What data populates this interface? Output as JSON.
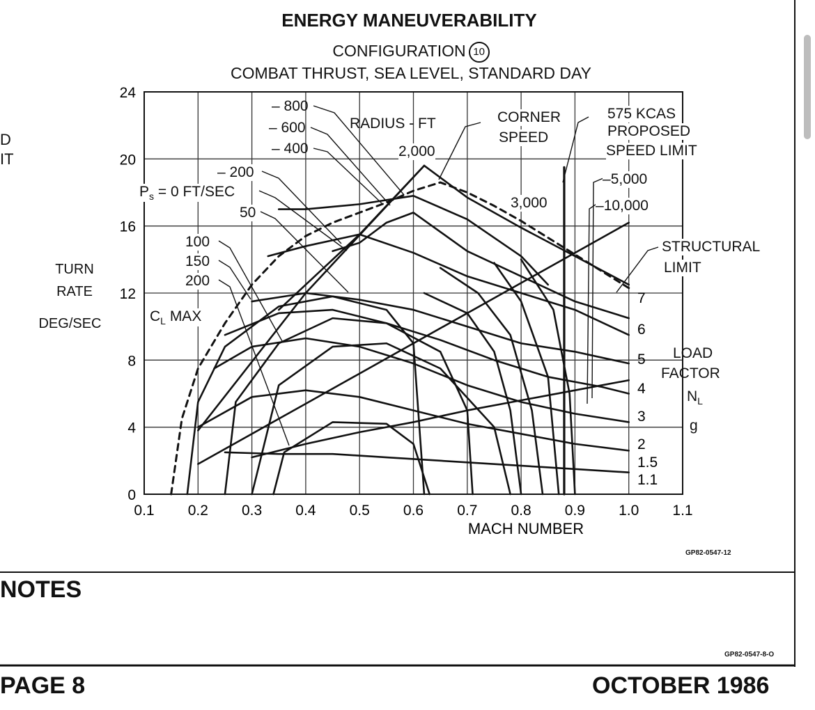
{
  "title": "ENERGY MANEUVERABILITY",
  "config_label": "CONFIGURATION",
  "config_number": "10",
  "conditions": "COMBAT THRUST, SEA LEVEL, STANDARD DAY",
  "left_edge_text": [
    "D",
    "IT"
  ],
  "notes_heading": "NOTES",
  "page_label": "PAGE 8",
  "date_label": "OCTOBER 1986",
  "figure_code": "GP82-0547-12",
  "page_code": "GP82-0547-8-O",
  "chart_data": {
    "type": "line",
    "xlabel": "MACH NUMBER",
    "ylabel": [
      "TURN",
      "RATE",
      "DEG/SEC"
    ],
    "xlim": [
      0.1,
      1.1
    ],
    "ylim": [
      0,
      24
    ],
    "grid": true,
    "x_ticks": [
      "0.1",
      "0.2",
      "0.3",
      "0.4",
      "0.5",
      "0.6",
      "0.7",
      "0.8",
      "0.9",
      "1.0",
      "1.1"
    ],
    "y_ticks": [
      "0",
      "4",
      "8",
      "12",
      "16",
      "20",
      "24"
    ],
    "load_factor": {
      "title": [
        "LOAD",
        "FACTOR",
        "N",
        "L",
        "g"
      ],
      "labels": [
        "7",
        "6",
        "5",
        "4",
        "3",
        "2",
        "1.5",
        "1.1"
      ],
      "values": [
        7,
        6,
        5,
        4,
        3,
        2,
        1.5,
        1.1
      ]
    },
    "radius": {
      "title": "RADIUS - FT",
      "labels": [
        "800",
        "600",
        "400",
        "2,000",
        "3,000",
        "5,000",
        "10,000"
      ]
    },
    "ps": {
      "title": "P",
      "sub": "s",
      "unit": "= 0 FT/SEC",
      "labels": [
        "200",
        "50",
        "100",
        "150",
        "200"
      ]
    },
    "annotations": {
      "cl_max": "C",
      "cl_sub": "L",
      "cl_tail": "MAX",
      "corner_speed": [
        "CORNER",
        "SPEED"
      ],
      "kcas": [
        "575 KCAS",
        "PROPOSED",
        "SPEED LIMIT"
      ],
      "structural": [
        "STRUCTURAL",
        "LIMIT"
      ]
    },
    "series": [
      {
        "x": [
          0.15,
          0.17,
          0.2,
          0.25,
          0.3,
          0.35,
          0.4,
          0.45,
          0.5,
          0.55,
          0.6,
          0.65,
          0.7,
          0.75,
          0.8,
          0.85,
          0.9,
          0.95,
          1.0
        ],
        "y": [
          0,
          4.5,
          7.5,
          10.2,
          12.5,
          14.2,
          15.4,
          16.2,
          16.8,
          17.4,
          18.1,
          18.6,
          18.0,
          17.2,
          16.3,
          15.3,
          14.3,
          13.3,
          12.3
        ]
      },
      {
        "x": [
          0.62,
          0.7,
          0.8,
          0.9,
          1.0
        ],
        "y": [
          19.6,
          17.7,
          15.9,
          14.2,
          12.5
        ]
      },
      {
        "x": [
          0.35,
          0.4,
          0.5,
          0.6,
          0.7,
          0.8,
          0.85
        ],
        "y": [
          17.0,
          17.0,
          17.3,
          17.8,
          16.4,
          14.2,
          12.5
        ]
      },
      {
        "x": [
          0.45,
          0.5,
          0.55,
          0.6,
          0.7,
          0.8,
          0.9,
          1.0
        ],
        "y": [
          14.5,
          15.0,
          16.2,
          16.8,
          14.5,
          13.0,
          11.5,
          10.5
        ]
      },
      {
        "x": [
          0.33,
          0.4,
          0.5,
          0.6,
          0.7,
          0.8,
          0.9,
          1.0
        ],
        "y": [
          14.2,
          14.8,
          15.5,
          14.4,
          13.0,
          12.0,
          11.0,
          9.5
        ]
      },
      {
        "x": [
          0.3,
          0.4,
          0.5,
          0.6,
          0.7,
          0.8,
          0.9,
          1.0
        ],
        "y": [
          11.5,
          12.0,
          11.6,
          11.0,
          10.0,
          9.0,
          8.5,
          7.8
        ]
      },
      {
        "x": [
          0.25,
          0.35,
          0.45,
          0.55,
          0.65,
          0.75,
          0.85,
          0.95,
          1.0
        ],
        "y": [
          9.5,
          10.8,
          11.0,
          10.2,
          9.2,
          8.0,
          7.0,
          6.4,
          6.0
        ]
      },
      {
        "x": [
          0.23,
          0.3,
          0.4,
          0.5,
          0.6,
          0.7,
          0.8,
          0.9,
          1.0
        ],
        "y": [
          7.5,
          8.8,
          9.3,
          8.8,
          7.8,
          6.5,
          5.5,
          4.8,
          4.3
        ]
      },
      {
        "x": [
          0.2,
          0.3,
          0.4,
          0.5,
          0.6,
          0.7,
          0.8,
          0.9,
          1.0
        ],
        "y": [
          4.0,
          5.8,
          6.2,
          5.8,
          5.0,
          4.2,
          3.6,
          3.0,
          2.6
        ]
      },
      {
        "x": [
          0.25,
          0.35,
          0.45,
          0.55,
          0.65,
          0.75,
          0.85,
          0.95,
          1.0
        ],
        "y": [
          2.5,
          2.4,
          2.4,
          2.2,
          2.0,
          1.8,
          1.6,
          1.4,
          1.3
        ]
      },
      {
        "x": [
          0.18,
          0.2,
          0.25,
          0.35,
          0.45,
          0.55,
          0.6,
          0.62
        ],
        "y": [
          0,
          5.5,
          8.8,
          11.2,
          11.8,
          11.0,
          9.0,
          0
        ]
      },
      {
        "x": [
          0.25,
          0.27,
          0.35,
          0.45,
          0.55,
          0.65,
          0.7,
          0.71
        ],
        "y": [
          0,
          5.5,
          9.0,
          10.5,
          10.2,
          8.5,
          5.0,
          0
        ]
      },
      {
        "x": [
          0.34,
          0.36,
          0.45,
          0.55,
          0.6,
          0.63
        ],
        "y": [
          0,
          2.5,
          4.3,
          4.2,
          3.0,
          0
        ]
      },
      {
        "x": [
          0.3,
          0.35,
          0.45,
          0.55,
          0.65,
          0.75,
          0.78
        ],
        "y": [
          0,
          6.5,
          8.8,
          9.0,
          7.5,
          4.0,
          0
        ]
      },
      {
        "x": [
          0.62,
          0.7,
          0.75,
          0.78,
          0.8
        ],
        "y": [
          12.0,
          10.8,
          8.5,
          5.0,
          0
        ]
      },
      {
        "x": [
          0.65,
          0.72,
          0.78,
          0.82,
          0.84
        ],
        "y": [
          13.5,
          12.0,
          9.5,
          5.0,
          0
        ]
      },
      {
        "x": [
          0.75,
          0.8,
          0.85,
          0.87
        ],
        "y": [
          13.8,
          11.5,
          7.0,
          0
        ]
      },
      {
        "x": [
          0.8,
          0.86,
          0.89,
          0.9
        ],
        "y": [
          14.0,
          11.0,
          6.0,
          0
        ]
      },
      {
        "x": [
          0.88,
          0.88
        ],
        "y": [
          0,
          19.5
        ]
      },
      {
        "x": [
          0.2,
          0.4,
          0.6,
          0.8,
          1.0
        ],
        "y": [
          1.8,
          5.4,
          9.0,
          12.6,
          16.2
        ]
      },
      {
        "x": [
          0.3,
          0.4,
          0.5,
          0.6,
          0.7,
          0.8,
          0.9,
          1.0
        ],
        "y": [
          2.2,
          3.0,
          3.7,
          4.3,
          5.0,
          5.6,
          6.2,
          6.8
        ]
      },
      {
        "x": [
          0.35,
          0.5,
          0.62
        ],
        "y": [
          11.0,
          15.5,
          19.6
        ]
      },
      {
        "x": [
          0.2,
          0.4,
          0.62
        ],
        "y": [
          3.8,
          12.0,
          19.6
        ]
      }
    ]
  }
}
